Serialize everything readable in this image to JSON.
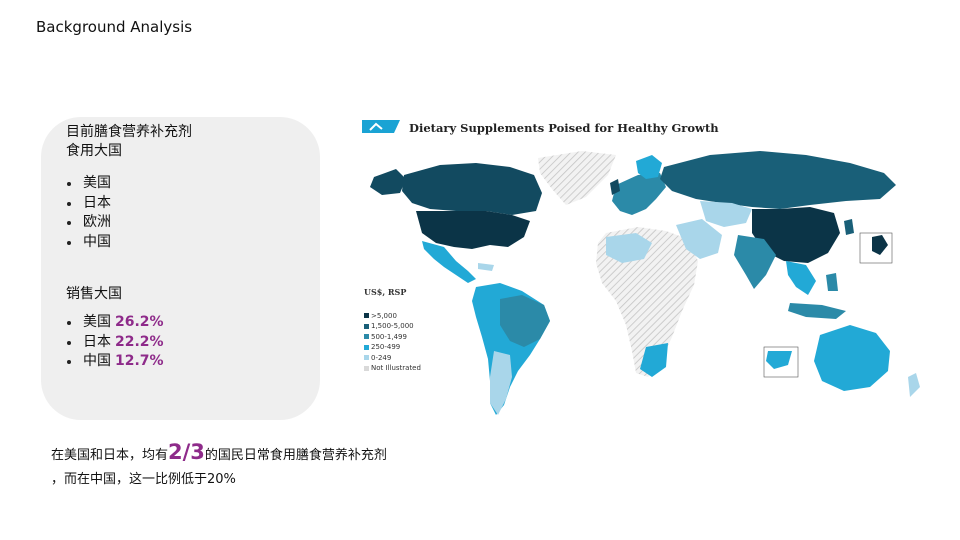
{
  "slide": {
    "title": "Background Analysis"
  },
  "panel": {
    "consumer_heading_line1": "目前膳食营养补充剂",
    "consumer_heading_line2": "食用大国",
    "consumers": [
      "美国",
      "日本",
      "欧洲",
      "中国"
    ],
    "sales_heading": "销售大国",
    "sales": [
      {
        "country": "美国",
        "share": "26.2%"
      },
      {
        "country": "日本",
        "share": "22.2%"
      },
      {
        "country": "中国",
        "share": "12.7%"
      }
    ]
  },
  "map": {
    "title": "Dietary Supplements Poised for Healthy Growth",
    "legend_title": "US$, RSP",
    "legend": [
      {
        "label": ">5,000",
        "color": "#0b3447"
      },
      {
        "label": "1,500-5,000",
        "color": "#195f78"
      },
      {
        "label": "500-1,499",
        "color": "#2b8aa8"
      },
      {
        "label": "250-499",
        "color": "#22a9d6"
      },
      {
        "label": "0-249",
        "color": "#a9d6ea"
      },
      {
        "label": "Not Illustrated",
        "color": "#d9d9d9"
      }
    ]
  },
  "summary": {
    "line1_pre": "在美国和日本，均有",
    "highlight": "2/3",
    "line1_post": "的国民日常食用膳食营养补充剂",
    "line2": "，而在中国，这一比例低于20%"
  }
}
